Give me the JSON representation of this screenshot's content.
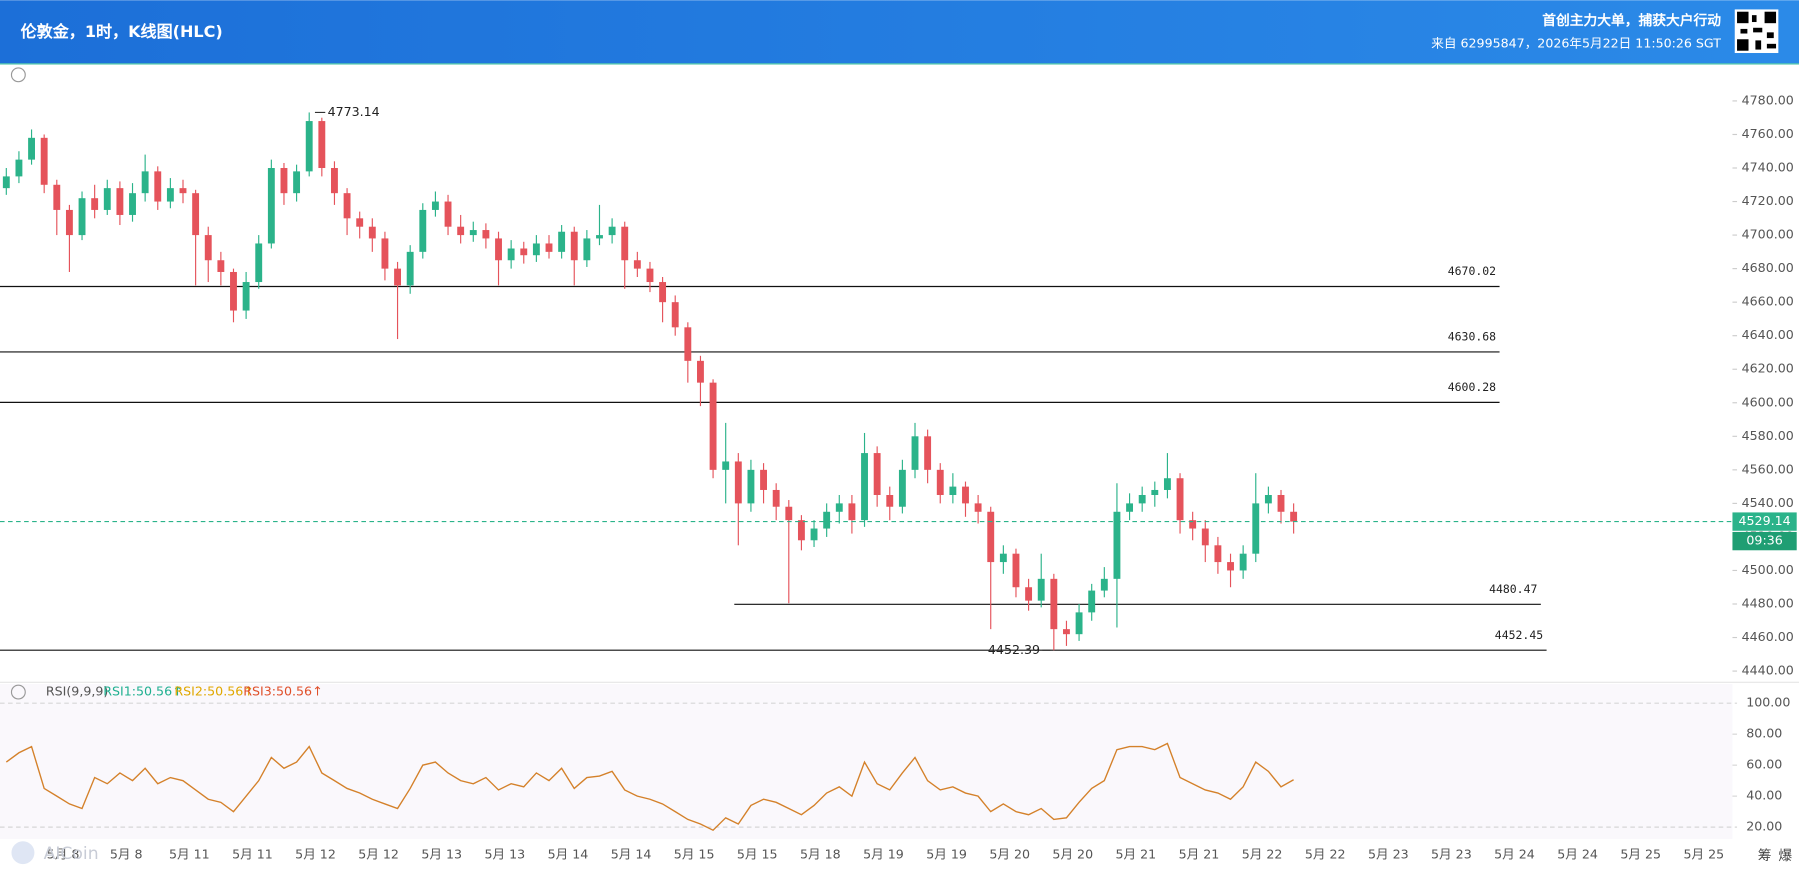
{
  "header": {
    "title": "伦敦金，1时，K线图(HLC)",
    "promo": "首创主力大单，捕获大户行动",
    "source": "来自 62995847，2026年5月22日 11:50:26 SGT"
  },
  "chart_data": {
    "type": "candlestick",
    "up_color": "#2bb38a",
    "down_color": "#e5535b",
    "candles": {
      "open": [
        4728,
        4735,
        4745,
        4758,
        4730,
        4715,
        4700,
        4722,
        4715,
        4728,
        4712,
        4725,
        4738,
        4720,
        4728,
        4725,
        4700,
        4685,
        4678,
        4655,
        4672,
        4695,
        4740,
        4725,
        4738,
        4768,
        4740,
        4725,
        4710,
        4705,
        4698,
        4680,
        4670,
        4690,
        4715,
        4720,
        4705,
        4700,
        4703,
        4698,
        4685,
        4692,
        4688,
        4695,
        4690,
        4702,
        4685,
        4698,
        4700,
        4705,
        4685,
        4680,
        4672,
        4660,
        4645,
        4625,
        4612,
        4560,
        4565,
        4540,
        4560,
        4548,
        4538,
        4530,
        4518,
        4525,
        4535,
        4540,
        4530,
        4570,
        4545,
        4538,
        4560,
        4580,
        4560,
        4545,
        4550,
        4540,
        4535,
        4505,
        4510,
        4490,
        4482,
        4495,
        4465,
        4462,
        4475,
        4488,
        4495,
        4535,
        4540,
        4545,
        4548,
        4555,
        4530,
        4525,
        4515,
        4505,
        4500,
        4510,
        4540,
        4545,
        4535
      ],
      "high": [
        4740,
        4750,
        4763,
        4760,
        4733,
        4718,
        4726,
        4730,
        4733,
        4732,
        4731,
        4748,
        4741,
        4734,
        4733,
        4727,
        4705,
        4690,
        4680,
        4678,
        4700,
        4745,
        4743,
        4742,
        4773.14,
        4770,
        4744,
        4728,
        4714,
        4710,
        4702,
        4684,
        4694,
        4719,
        4726,
        4724,
        4712,
        4708,
        4707,
        4702,
        4697,
        4696,
        4700,
        4700,
        4706,
        4705,
        4703,
        4718,
        4710,
        4708,
        4690,
        4684,
        4675,
        4664,
        4648,
        4628,
        4614,
        4588,
        4570,
        4566,
        4564,
        4552,
        4542,
        4533,
        4530,
        4540,
        4545,
        4545,
        4582,
        4574,
        4550,
        4566,
        4588,
        4584,
        4564,
        4558,
        4553,
        4545,
        4538,
        4515,
        4513,
        4495,
        4510,
        4498,
        4470,
        4480,
        4492,
        4502,
        4552,
        4546,
        4550,
        4553,
        4570,
        4558,
        4535,
        4530,
        4520,
        4510,
        4515,
        4558,
        4550,
        4548,
        4540
      ],
      "low": [
        4724,
        4731,
        4742,
        4725,
        4700,
        4678,
        4697,
        4710,
        4712,
        4706,
        4708,
        4720,
        4715,
        4716,
        4719,
        4670,
        4672,
        4670,
        4648,
        4650,
        4668,
        4692,
        4718,
        4720,
        4735,
        4735,
        4718,
        4700,
        4698,
        4690,
        4673,
        4638,
        4665,
        4686,
        4711,
        4700,
        4695,
        4696,
        4692,
        4670,
        4680,
        4683,
        4684,
        4686,
        4686,
        4670,
        4681,
        4694,
        4695,
        4668,
        4675,
        4666,
        4648,
        4640,
        4612,
        4598,
        4555,
        4540,
        4515,
        4535,
        4540,
        4530,
        4480.47,
        4512,
        4514,
        4520,
        4528,
        4522,
        4526,
        4538,
        4530,
        4534,
        4555,
        4552,
        4540,
        4540,
        4532,
        4528,
        4465,
        4498,
        4484,
        4476,
        4478,
        4452.39,
        4455,
        4458,
        4470,
        4484,
        4466,
        4530,
        4535,
        4538,
        4543,
        4522,
        4518,
        4505,
        4498,
        4490,
        4495,
        4505,
        4534,
        4528,
        4522
      ],
      "close": [
        4735,
        4745,
        4758,
        4730,
        4715,
        4700,
        4722,
        4715,
        4728,
        4712,
        4725,
        4738,
        4720,
        4728,
        4725,
        4700,
        4685,
        4678,
        4655,
        4672,
        4695,
        4740,
        4725,
        4738,
        4768,
        4740,
        4725,
        4710,
        4705,
        4698,
        4680,
        4670,
        4690,
        4715,
        4720,
        4705,
        4700,
        4703,
        4698,
        4685,
        4692,
        4688,
        4695,
        4690,
        4702,
        4685,
        4698,
        4700,
        4705,
        4685,
        4680,
        4672,
        4660,
        4645,
        4625,
        4612,
        4560,
        4565,
        4540,
        4560,
        4548,
        4538,
        4530,
        4518,
        4525,
        4535,
        4540,
        4530,
        4570,
        4545,
        4538,
        4560,
        4580,
        4560,
        4545,
        4550,
        4540,
        4535,
        4505,
        4510,
        4490,
        4482,
        4495,
        4465,
        4462,
        4475,
        4488,
        4495,
        4535,
        4540,
        4545,
        4548,
        4555,
        4530,
        4525,
        4515,
        4505,
        4500,
        4510,
        4540,
        4545,
        4535,
        4529.14
      ]
    },
    "ylim": [
      4435,
      4799
    ],
    "yticks": [
      {
        "value": 4780,
        "label": "4780.00"
      },
      {
        "value": 4760,
        "label": "4760.00"
      },
      {
        "value": 4740,
        "label": "4740.00"
      },
      {
        "value": 4720,
        "label": "4720.00"
      },
      {
        "value": 4700,
        "label": "4700.00"
      },
      {
        "value": 4680,
        "label": "4680.00"
      },
      {
        "value": 4660,
        "label": "4660.00"
      },
      {
        "value": 4640,
        "label": "4640.00"
      },
      {
        "value": 4620,
        "label": "4620.00"
      },
      {
        "value": 4600,
        "label": "4600.00"
      },
      {
        "value": 4580,
        "label": "4580.00"
      },
      {
        "value": 4560,
        "label": "4560.00"
      },
      {
        "value": 4540,
        "label": "4540.00"
      },
      {
        "value": 4520,
        "label": "4520.00"
      },
      {
        "value": 4500,
        "label": "4500.00"
      },
      {
        "value": 4480,
        "label": "4480.00"
      },
      {
        "value": 4460,
        "label": "4460.00"
      },
      {
        "value": 4440,
        "label": "4440.00"
      }
    ],
    "xlim": [
      -0.5,
      136.77
    ],
    "xticks": [
      {
        "value": 4.5,
        "label": "5月 8"
      },
      {
        "value": 9.5,
        "label": "5月 8"
      },
      {
        "value": 14.5,
        "label": "5月 11"
      },
      {
        "value": 19.5,
        "label": "5月 11"
      },
      {
        "value": 24.5,
        "label": "5月 12"
      },
      {
        "value": 29.5,
        "label": "5月 12"
      },
      {
        "value": 34.5,
        "label": "5月 13"
      },
      {
        "value": 39.5,
        "label": "5月 13"
      },
      {
        "value": 44.5,
        "label": "5月 14"
      },
      {
        "value": 49.5,
        "label": "5月 14"
      },
      {
        "value": 54.5,
        "label": "5月 15"
      },
      {
        "value": 59.5,
        "label": "5月 15"
      },
      {
        "value": 64.5,
        "label": "5月 18"
      },
      {
        "value": 69.5,
        "label": "5月 19"
      },
      {
        "value": 74.5,
        "label": "5月 19"
      },
      {
        "value": 79.5,
        "label": "5月 20"
      },
      {
        "value": 84.5,
        "label": "5月 20"
      },
      {
        "value": 89.5,
        "label": "5月 21"
      },
      {
        "value": 94.5,
        "label": "5月 21"
      },
      {
        "value": 99.5,
        "label": "5月 22"
      },
      {
        "value": 104.5,
        "label": "5月 22"
      },
      {
        "value": 109.5,
        "label": "5月 23"
      },
      {
        "value": 114.5,
        "label": "5月 23"
      },
      {
        "value": 119.5,
        "label": "5月 24"
      },
      {
        "value": 124.5,
        "label": "5月 24"
      },
      {
        "value": 129.5,
        "label": "5月 25"
      },
      {
        "value": 134.5,
        "label": "5月 25"
      }
    ],
    "levels": [
      4670.02,
      4630.68,
      4600.28,
      4480.47,
      4452.45
    ],
    "current_price": 4529.14,
    "countdown": "09:36",
    "rsi": {
      "name": "RSI(9,9,9)",
      "color": "#d4812a",
      "values": [
        62,
        68,
        72,
        45,
        40,
        35,
        32,
        52,
        48,
        55,
        50,
        58,
        48,
        52,
        50,
        44,
        38,
        36,
        30,
        40,
        50,
        65,
        58,
        62,
        72,
        55,
        50,
        45,
        42,
        38,
        35,
        32,
        45,
        60,
        62,
        55,
        50,
        48,
        52,
        44,
        48,
        46,
        55,
        50,
        58,
        45,
        52,
        53,
        56,
        44,
        40,
        38,
        35,
        30,
        25,
        22,
        18,
        26,
        22,
        34,
        38,
        36,
        32,
        28,
        34,
        42,
        46,
        40,
        62,
        48,
        44,
        55,
        65,
        50,
        44,
        46,
        42,
        40,
        30,
        35,
        30,
        28,
        32,
        25,
        26,
        36,
        45,
        50,
        70,
        72,
        72,
        70,
        74,
        52,
        48,
        44,
        42,
        38,
        46,
        62,
        56,
        46,
        50.56
      ],
      "legend": [
        "RSI1:50.56↑",
        "RSI2:50.56↑",
        "RSI3:50.56↑"
      ],
      "ylim": [
        14.6,
        105.7
      ],
      "yticks": [
        {
          "value": 100,
          "label": "100.00"
        },
        {
          "value": 80,
          "label": "80.00"
        },
        {
          "value": 60,
          "label": "60.00"
        },
        {
          "value": 40,
          "label": "40.00"
        },
        {
          "value": 20,
          "label": "20.00"
        }
      ]
    }
  },
  "footer": {
    "watermark": "AICoin",
    "buttons": [
      "筹",
      "爆"
    ]
  }
}
